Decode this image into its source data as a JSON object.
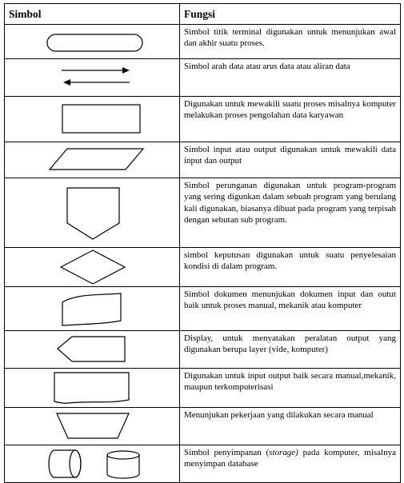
{
  "table": {
    "headers": {
      "symbol": "Simbol",
      "function": "Fungsi"
    },
    "rows": [
      {
        "symbol": "terminal-symbol",
        "desc": "Simbol titik terminal digunakan untuk menunjukan awal dan akhir suatu proses."
      },
      {
        "symbol": "flow-arrows-symbol",
        "desc": "Simbol arah data atau arus data atau aliran data"
      },
      {
        "symbol": "process-symbol",
        "desc": "Digunakan untuk mewakili suatu proses misalnya komputer melakukan proses pengolahan data karyawan"
      },
      {
        "symbol": "input-output-symbol",
        "desc": "Simbol input atau output digunakan untuk mewakili data input dan output"
      },
      {
        "symbol": "off-page-connector-symbol",
        "desc": "Simbol perunganan digunakan untuk program-program yang sering digunkan dalam sebuah program yang berulang kali digunakan, biasanya dibuat pada program yang terpisah dengan sebutan sub program."
      },
      {
        "symbol": "decision-symbol",
        "desc": "simbol keputusan digunakan untuk suatu penyelesaian kondisi di dalam program."
      },
      {
        "symbol": "document-symbol",
        "desc": "Simbol dokumen menunjukan dokumen input dan outut baik untuk proses manual, mekanik atau komputer"
      },
      {
        "symbol": "display-symbol",
        "desc": "Display, untuk menyatakan peralatan output yang digunakan berupa layer (vide, komputer)"
      },
      {
        "symbol": "manual-input-symbol",
        "desc": "Digunakan untuk input output baik secara manual,mekanik, maupun terkomputerisasi"
      },
      {
        "symbol": "manual-operation-symbol",
        "desc": "Menunjukan pekerjaan yang dilakukan secara manual"
      },
      {
        "symbol": "storage-symbol",
        "desc_before": "Simbol penyimpanan (",
        "desc_italic": "storage)",
        "desc_after": " pada komputer, misalnya menyimpan database"
      }
    ]
  }
}
